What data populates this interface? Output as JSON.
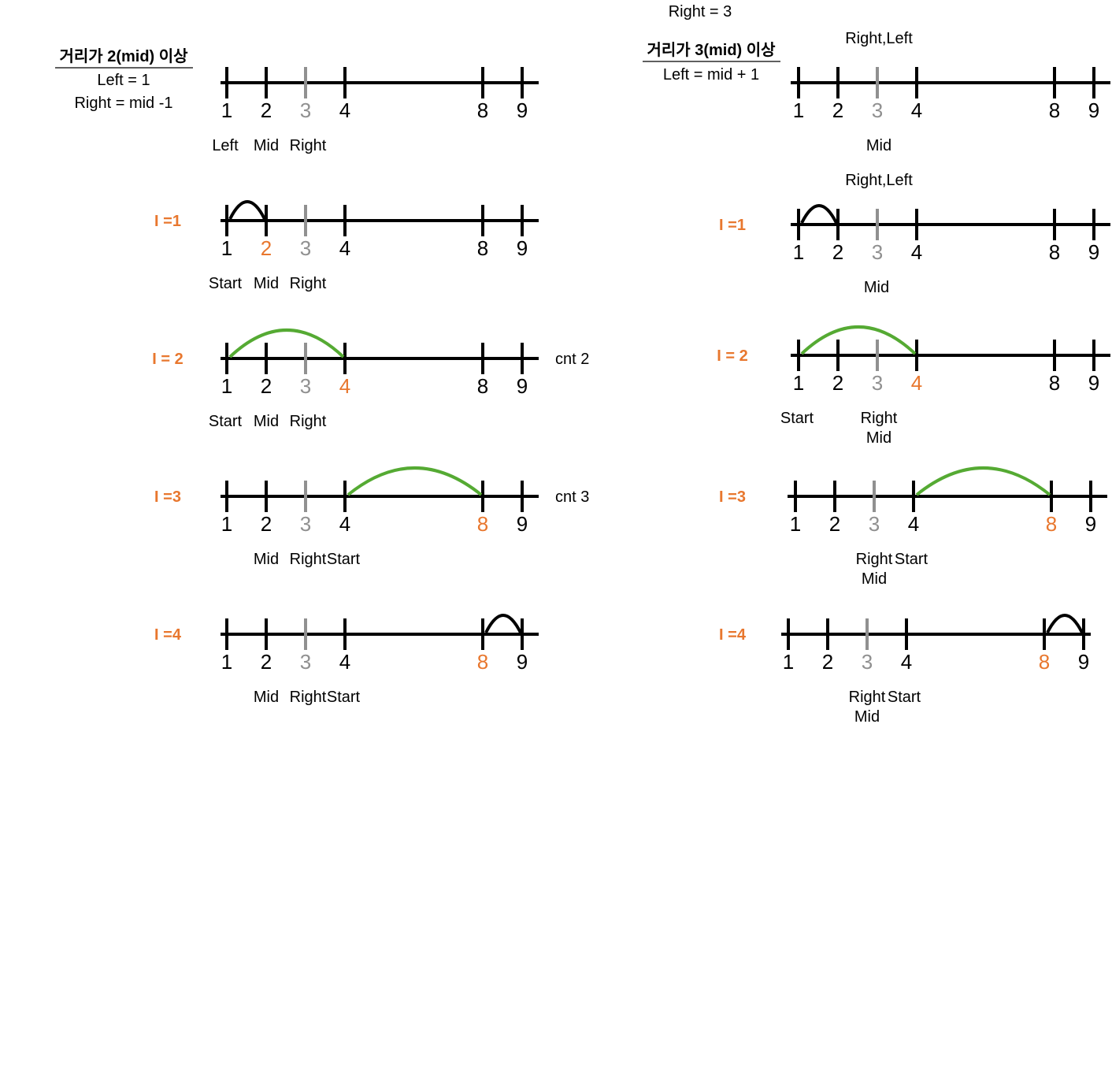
{
  "colors": {
    "black": "#000000",
    "gray": "#909090",
    "orange": "#E8772E",
    "green": "#55AA33"
  },
  "panels": [
    {
      "id": "left",
      "header": {
        "title": "거리가 2(mid) 이상",
        "lines": [
          "Left = 1",
          "Right = mid -1"
        ]
      },
      "top_note": "",
      "rows": [
        {
          "iter": "",
          "nums": [
            "1",
            "2",
            "3",
            "4",
            "8",
            "9"
          ],
          "num_colors": [
            "black",
            "black",
            "gray",
            "black",
            "black",
            "black"
          ],
          "arc": null,
          "cnt": "",
          "above": [],
          "below": [
            [
              "Left",
              "Mid",
              "Right",
              ""
            ]
          ]
        },
        {
          "iter": "I =1",
          "nums": [
            "1",
            "2",
            "3",
            "4",
            "8",
            "9"
          ],
          "num_colors": [
            "black",
            "orange",
            "gray",
            "black",
            "black",
            "black"
          ],
          "arc": {
            "from": 0,
            "to": 1,
            "color": "black"
          },
          "cnt": "",
          "above": [],
          "below": [
            [
              "Start",
              "Mid",
              "Right",
              ""
            ]
          ]
        },
        {
          "iter": "I = 2",
          "nums": [
            "1",
            "2",
            "3",
            "4",
            "8",
            "9"
          ],
          "num_colors": [
            "black",
            "black",
            "gray",
            "orange",
            "black",
            "black"
          ],
          "arc": {
            "from": 0,
            "to": 3,
            "color": "green"
          },
          "cnt": "cnt 2",
          "above": [],
          "below": [
            [
              "Start",
              "Mid",
              "Right",
              ""
            ]
          ]
        },
        {
          "iter": "I =3",
          "nums": [
            "1",
            "2",
            "3",
            "4",
            "8",
            "9"
          ],
          "num_colors": [
            "black",
            "black",
            "gray",
            "black",
            "orange",
            "black"
          ],
          "arc": {
            "from": 3,
            "to": 4,
            "color": "green"
          },
          "cnt": "cnt 3",
          "above": [],
          "below": [
            [
              "",
              "Mid",
              "Right",
              "Start"
            ]
          ]
        },
        {
          "iter": "I =4",
          "nums": [
            "1",
            "2",
            "3",
            "4",
            "8",
            "9"
          ],
          "num_colors": [
            "black",
            "black",
            "gray",
            "black",
            "orange",
            "black"
          ],
          "arc": {
            "from": 4,
            "to": 5,
            "color": "black"
          },
          "cnt": "",
          "above": [],
          "below": [
            [
              "",
              "Mid",
              "Right",
              "Start"
            ]
          ]
        }
      ]
    },
    {
      "id": "right",
      "header": {
        "title": "거리가 3(mid) 이상",
        "lines": [
          "Left = mid + 1"
        ]
      },
      "top_note": "Right = 3",
      "rows": [
        {
          "iter": "",
          "nums": [
            "1",
            "2",
            "3",
            "4",
            "8",
            "9"
          ],
          "num_colors": [
            "black",
            "black",
            "gray",
            "black",
            "black",
            "black"
          ],
          "arc": null,
          "cnt": "",
          "above": [
            "Right,Left"
          ],
          "below": [
            [
              "",
              "",
              "Mid",
              ""
            ]
          ]
        },
        {
          "iter": "I =1",
          "nums": [
            "1",
            "2",
            "3",
            "4",
            "8",
            "9"
          ],
          "num_colors": [
            "black",
            "black",
            "gray",
            "black",
            "black",
            "black"
          ],
          "arc": {
            "from": 0,
            "to": 1,
            "color": "black"
          },
          "cnt": "",
          "above": [
            "Right,Left"
          ],
          "below": [
            [
              "",
              "",
              "Mid",
              ""
            ]
          ]
        },
        {
          "iter": "I = 2",
          "nums": [
            "1",
            "2",
            "3",
            "4",
            "8",
            "9"
          ],
          "num_colors": [
            "black",
            "black",
            "gray",
            "orange",
            "black",
            "black"
          ],
          "arc": {
            "from": 0,
            "to": 3,
            "color": "green"
          },
          "cnt": "",
          "above": [],
          "below": [
            [
              "Start",
              "",
              "Right",
              ""
            ],
            [
              "",
              "",
              "Mid",
              ""
            ]
          ]
        },
        {
          "iter": "I =3",
          "nums": [
            "1",
            "2",
            "3",
            "4",
            "8",
            "9"
          ],
          "num_colors": [
            "black",
            "black",
            "gray",
            "black",
            "orange",
            "black"
          ],
          "arc": {
            "from": 3,
            "to": 4,
            "color": "green"
          },
          "cnt": "",
          "above": [],
          "below": [
            [
              "",
              "",
              "Right",
              "Start"
            ],
            [
              "",
              "",
              "Mid",
              ""
            ]
          ]
        },
        {
          "iter": "I =4",
          "nums": [
            "1",
            "2",
            "3",
            "4",
            "8",
            "9"
          ],
          "num_colors": [
            "black",
            "black",
            "gray",
            "black",
            "orange",
            "black"
          ],
          "arc": {
            "from": 4,
            "to": 5,
            "color": "black"
          },
          "cnt": "",
          "above": [],
          "below": [
            [
              "",
              "",
              "Right",
              "Start"
            ],
            [
              "",
              "",
              "Mid",
              ""
            ]
          ]
        }
      ]
    }
  ]
}
